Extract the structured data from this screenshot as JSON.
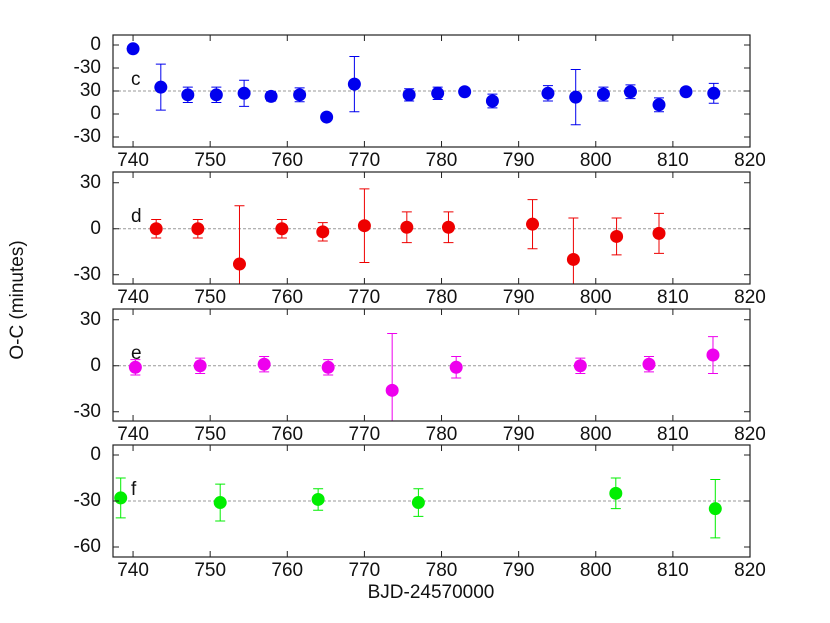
{
  "xlabel": "BJD-24570000",
  "ylabel": "O-C (minutes)",
  "chart_data": [
    {
      "type": "scatter",
      "label": "c",
      "color": "#0000ee",
      "x": [
        740,
        743.6,
        747.1,
        750.8,
        754.4,
        757.9,
        761.6,
        765.1,
        768.7,
        775.8,
        779.5,
        783,
        786.6,
        793.8,
        797.4,
        801,
        804.5,
        808.2,
        811.7,
        815.3
      ],
      "values": [
        85,
        35,
        25,
        25,
        27,
        23,
        25,
        -4,
        39,
        25,
        27,
        29,
        17,
        27,
        22,
        26,
        29,
        12,
        29,
        27
      ],
      "errors": [
        null,
        30,
        10,
        10,
        17,
        6,
        9,
        null,
        36,
        8,
        8,
        null,
        9,
        10,
        36,
        9,
        9,
        9,
        null,
        13
      ],
      "refline": 30,
      "xlim": [
        737.4,
        820
      ],
      "xticks": [
        740,
        750,
        760,
        770,
        780,
        790,
        800,
        810,
        820
      ],
      "ylim": [
        -43,
        103
      ],
      "yticks": [
        {
          "value": 90,
          "label": "0"
        },
        {
          "value": 60,
          "label": "-30"
        },
        30,
        0,
        -30
      ]
    },
    {
      "type": "scatter",
      "label": "d",
      "color": "#ee0000",
      "x": [
        743,
        748.4,
        753.8,
        759.3,
        764.6,
        770,
        775.5,
        780.9,
        791.8,
        797.1,
        802.7,
        808.2
      ],
      "values": [
        0,
        0,
        -23,
        0,
        -2,
        2,
        1,
        1,
        3,
        -20,
        -5,
        -3
      ],
      "errors": [
        6,
        6,
        38,
        6,
        6,
        24,
        10,
        10,
        16,
        27,
        12,
        13
      ],
      "refline": 0,
      "xlim": [
        737.4,
        820
      ],
      "xticks": [
        740,
        750,
        760,
        770,
        780,
        790,
        800,
        810,
        820
      ],
      "ylim": [
        -36,
        37
      ],
      "yticks": [
        30,
        0,
        -30
      ]
    },
    {
      "type": "scatter",
      "label": "e",
      "color": "#ee00ee",
      "x": [
        740.3,
        748.7,
        757,
        765.3,
        773.6,
        781.9,
        798,
        806.9,
        815.2
      ],
      "values": [
        -1,
        0,
        1,
        -1,
        -16,
        -1,
        0,
        1,
        7
      ],
      "errors": [
        5,
        5,
        5,
        5,
        37,
        7,
        5,
        5,
        12
      ],
      "refline": 0,
      "xlim": [
        737.4,
        820
      ],
      "xticks": [
        740,
        750,
        760,
        770,
        780,
        790,
        800,
        810,
        820
      ],
      "ylim": [
        -36,
        37
      ],
      "yticks": [
        30,
        0,
        -30
      ]
    },
    {
      "type": "scatter",
      "label": "f",
      "color": "#00ee00",
      "x": [
        738.4,
        751.3,
        764,
        777,
        802.6,
        815.5
      ],
      "values": [
        -28,
        -31,
        -29,
        -31,
        -25,
        -35
      ],
      "errors": [
        13,
        12,
        7,
        9,
        10,
        19
      ],
      "refline": -30,
      "xlim": [
        737.4,
        820
      ],
      "xticks": [
        740,
        750,
        760,
        770,
        780,
        790,
        800,
        810,
        820
      ],
      "ylim": [
        -66.5,
        6.5
      ],
      "yticks": [
        0,
        -30,
        -60
      ]
    }
  ]
}
